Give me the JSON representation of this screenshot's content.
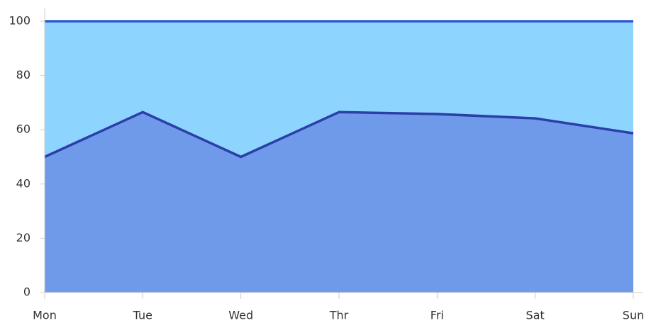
{
  "chart_data": {
    "type": "stacked_area_100",
    "categories": [
      "Mon",
      "Tue",
      "Wed",
      "Thr",
      "Fri",
      "Sat",
      "Sun"
    ],
    "series": [
      {
        "color": "#6f9aea",
        "line_color": "#2c3ea8",
        "values": [
          50,
          66.5,
          50,
          66.5,
          65.8,
          64.2,
          58.7
        ]
      },
      {
        "color": "#8dd4fe",
        "line_color": "#2f5bd0",
        "values": [
          50,
          33.5,
          50,
          33.5,
          34.2,
          35.8,
          41.3
        ]
      }
    ],
    "ylim": [
      0,
      100
    ],
    "yticks": [
      0,
      20,
      40,
      60,
      80,
      100
    ]
  }
}
